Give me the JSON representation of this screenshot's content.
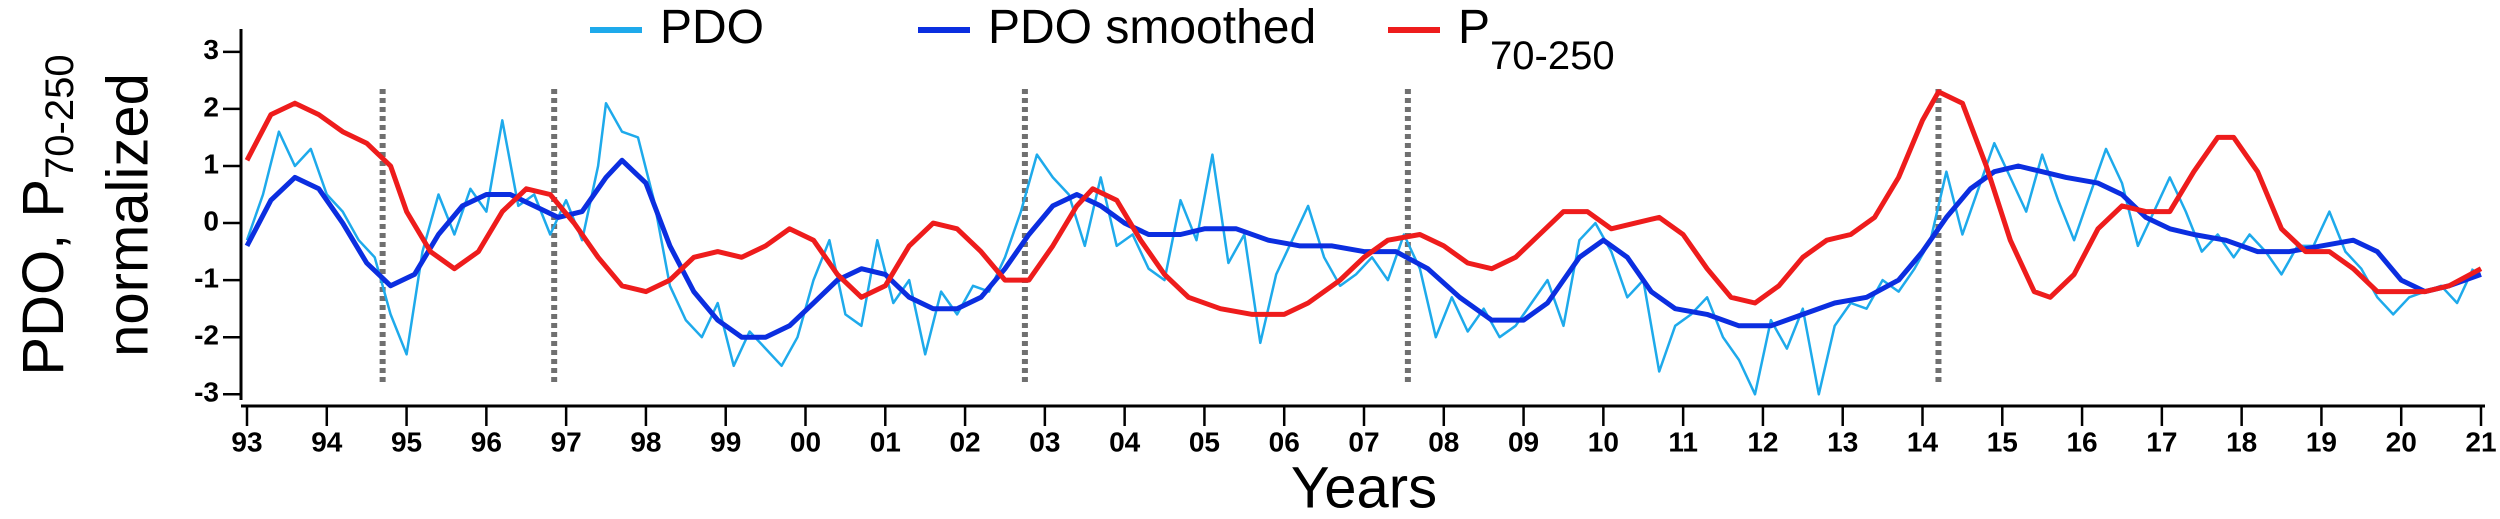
{
  "chart_data": {
    "type": "line",
    "x_label": "Years",
    "y_label": {
      "main": "PDO, P",
      "subscript": "70-250",
      "line2": "normalized"
    },
    "xlim": [
      1993,
      2021
    ],
    "ylim": [
      -3.1,
      3.4
    ],
    "xticks": [
      {
        "value": 1993,
        "label": "93"
      },
      {
        "value": 1994,
        "label": "94"
      },
      {
        "value": 1995,
        "label": "95"
      },
      {
        "value": 1996,
        "label": "96"
      },
      {
        "value": 1997,
        "label": "97"
      },
      {
        "value": 1998,
        "label": "98"
      },
      {
        "value": 1999,
        "label": "99"
      },
      {
        "value": 2000,
        "label": "00"
      },
      {
        "value": 2001,
        "label": "01"
      },
      {
        "value": 2002,
        "label": "02"
      },
      {
        "value": 2003,
        "label": "03"
      },
      {
        "value": 2004,
        "label": "04"
      },
      {
        "value": 2005,
        "label": "05"
      },
      {
        "value": 2006,
        "label": "06"
      },
      {
        "value": 2007,
        "label": "07"
      },
      {
        "value": 2008,
        "label": "08"
      },
      {
        "value": 2009,
        "label": "09"
      },
      {
        "value": 2010,
        "label": "10"
      },
      {
        "value": 2011,
        "label": "11"
      },
      {
        "value": 2012,
        "label": "12"
      },
      {
        "value": 2013,
        "label": "13"
      },
      {
        "value": 2014,
        "label": "14"
      },
      {
        "value": 2015,
        "label": "15"
      },
      {
        "value": 2016,
        "label": "16"
      },
      {
        "value": 2017,
        "label": "17"
      },
      {
        "value": 2018,
        "label": "18"
      },
      {
        "value": 2019,
        "label": "19"
      },
      {
        "value": 2020,
        "label": "20"
      },
      {
        "value": 2021,
        "label": "21"
      }
    ],
    "yticks": [
      -3,
      -2,
      -1,
      0,
      1,
      2,
      3
    ],
    "vlines": [
      1994.7,
      1996.85,
      2002.75,
      2007.55,
      2014.2
    ],
    "vline_color": "#707070",
    "series": [
      {
        "name": "PDO",
        "color": "#1eaaeb",
        "width": 2.5,
        "x": [
          1993.0,
          1993.2,
          1993.4,
          1993.6,
          1993.8,
          1994.0,
          1994.2,
          1994.4,
          1994.6,
          1994.8,
          1995.0,
          1995.2,
          1995.4,
          1995.6,
          1995.8,
          1996.0,
          1996.2,
          1996.4,
          1996.6,
          1996.8,
          1997.0,
          1997.2,
          1997.4,
          1997.5,
          1997.7,
          1997.9,
          1998.1,
          1998.3,
          1998.5,
          1998.7,
          1998.9,
          1999.1,
          1999.3,
          1999.5,
          1999.7,
          1999.9,
          2000.1,
          2000.3,
          2000.5,
          2000.7,
          2000.9,
          2001.1,
          2001.3,
          2001.5,
          2001.7,
          2001.9,
          2002.1,
          2002.3,
          2002.5,
          2002.7,
          2002.9,
          2003.1,
          2003.3,
          2003.5,
          2003.7,
          2003.9,
          2004.1,
          2004.3,
          2004.5,
          2004.7,
          2004.9,
          2005.1,
          2005.3,
          2005.5,
          2005.7,
          2005.9,
          2006.1,
          2006.3,
          2006.5,
          2006.7,
          2006.9,
          2007.1,
          2007.3,
          2007.5,
          2007.7,
          2007.9,
          2008.1,
          2008.3,
          2008.5,
          2008.7,
          2008.9,
          2009.1,
          2009.3,
          2009.5,
          2009.7,
          2009.9,
          2010.1,
          2010.3,
          2010.5,
          2010.7,
          2010.9,
          2011.1,
          2011.3,
          2011.5,
          2011.7,
          2011.9,
          2012.1,
          2012.3,
          2012.5,
          2012.7,
          2012.9,
          2013.1,
          2013.3,
          2013.5,
          2013.7,
          2013.9,
          2014.1,
          2014.3,
          2014.5,
          2014.7,
          2014.9,
          2015.1,
          2015.3,
          2015.5,
          2015.7,
          2015.9,
          2016.1,
          2016.3,
          2016.5,
          2016.7,
          2016.9,
          2017.1,
          2017.3,
          2017.5,
          2017.7,
          2017.9,
          2018.1,
          2018.3,
          2018.5,
          2018.7,
          2018.9,
          2019.1,
          2019.3,
          2019.5,
          2019.7,
          2019.9,
          2020.1,
          2020.3,
          2020.5,
          2020.7,
          2020.9
        ],
        "values": [
          -0.3,
          0.5,
          1.6,
          1.0,
          1.3,
          0.5,
          0.2,
          -0.3,
          -0.6,
          -1.6,
          -2.3,
          -0.5,
          0.5,
          -0.2,
          0.6,
          0.2,
          1.8,
          0.3,
          0.5,
          -0.2,
          0.4,
          -0.3,
          1.0,
          2.1,
          1.6,
          1.5,
          0.4,
          -1.1,
          -1.7,
          -2.0,
          -1.4,
          -2.5,
          -1.9,
          -2.2,
          -2.5,
          -2.0,
          -1.0,
          -0.3,
          -1.6,
          -1.8,
          -0.3,
          -1.4,
          -1.0,
          -2.3,
          -1.2,
          -1.6,
          -1.1,
          -1.2,
          -0.6,
          0.2,
          1.2,
          0.8,
          0.5,
          -0.4,
          0.8,
          -0.4,
          -0.2,
          -0.8,
          -1.0,
          0.4,
          -0.3,
          1.2,
          -0.7,
          -0.2,
          -2.1,
          -0.9,
          -0.3,
          0.3,
          -0.6,
          -1.1,
          -0.9,
          -0.6,
          -1.0,
          -0.2,
          -0.8,
          -2.0,
          -1.3,
          -1.9,
          -1.5,
          -2.0,
          -1.8,
          -1.4,
          -1.0,
          -1.8,
          -0.3,
          0.0,
          -0.5,
          -1.3,
          -1.0,
          -2.6,
          -1.8,
          -1.6,
          -1.3,
          -2.0,
          -2.4,
          -3.0,
          -1.7,
          -2.2,
          -1.5,
          -3.0,
          -1.8,
          -1.4,
          -1.5,
          -1.0,
          -1.2,
          -0.8,
          -0.3,
          0.9,
          -0.2,
          0.6,
          1.4,
          0.8,
          0.2,
          1.2,
          0.4,
          -0.3,
          0.5,
          1.3,
          0.7,
          -0.4,
          0.2,
          0.8,
          0.2,
          -0.5,
          -0.2,
          -0.6,
          -0.2,
          -0.5,
          -0.9,
          -0.4,
          -0.4,
          0.2,
          -0.5,
          -0.8,
          -1.3,
          -1.6,
          -1.3,
          -1.2,
          -1.1,
          -1.4,
          -0.8
        ]
      },
      {
        "name": "PDO smoothed",
        "color": "#0b2ee0",
        "width": 5,
        "x": [
          1993.0,
          1993.3,
          1993.6,
          1993.9,
          1994.2,
          1994.5,
          1994.8,
          1995.1,
          1995.4,
          1995.7,
          1996.0,
          1996.3,
          1996.6,
          1996.9,
          1997.2,
          1997.5,
          1997.7,
          1998.0,
          1998.3,
          1998.6,
          1998.9,
          1999.2,
          1999.5,
          1999.8,
          2000.1,
          2000.4,
          2000.7,
          2001.0,
          2001.3,
          2001.6,
          2001.9,
          2002.2,
          2002.5,
          2002.8,
          2003.1,
          2003.4,
          2003.7,
          2004.0,
          2004.3,
          2004.7,
          2005.0,
          2005.4,
          2005.8,
          2006.2,
          2006.6,
          2007.0,
          2007.4,
          2007.8,
          2008.2,
          2008.6,
          2009.0,
          2009.3,
          2009.7,
          2010.0,
          2010.3,
          2010.6,
          2010.9,
          2011.3,
          2011.7,
          2012.1,
          2012.5,
          2012.9,
          2013.3,
          2013.7,
          2014.0,
          2014.3,
          2014.6,
          2014.9,
          2015.2,
          2015.5,
          2015.8,
          2016.2,
          2016.5,
          2016.8,
          2017.1,
          2017.4,
          2017.8,
          2018.2,
          2018.6,
          2019.0,
          2019.4,
          2019.7,
          2020.0,
          2020.3,
          2020.6,
          2021.0
        ],
        "values": [
          -0.4,
          0.4,
          0.8,
          0.6,
          0.0,
          -0.7,
          -1.1,
          -0.9,
          -0.2,
          0.3,
          0.5,
          0.5,
          0.3,
          0.1,
          0.2,
          0.8,
          1.1,
          0.7,
          -0.4,
          -1.2,
          -1.7,
          -2.0,
          -2.0,
          -1.8,
          -1.4,
          -1.0,
          -0.8,
          -0.9,
          -1.3,
          -1.5,
          -1.5,
          -1.3,
          -0.8,
          -0.2,
          0.3,
          0.5,
          0.3,
          0.0,
          -0.2,
          -0.2,
          -0.1,
          -0.1,
          -0.3,
          -0.4,
          -0.4,
          -0.5,
          -0.5,
          -0.8,
          -1.3,
          -1.7,
          -1.7,
          -1.4,
          -0.6,
          -0.3,
          -0.6,
          -1.2,
          -1.5,
          -1.6,
          -1.8,
          -1.8,
          -1.6,
          -1.4,
          -1.3,
          -1.0,
          -0.5,
          0.1,
          0.6,
          0.9,
          1.0,
          0.9,
          0.8,
          0.7,
          0.5,
          0.1,
          -0.1,
          -0.2,
          -0.3,
          -0.5,
          -0.5,
          -0.4,
          -0.3,
          -0.5,
          -1.0,
          -1.2,
          -1.1,
          -0.9
        ]
      },
      {
        "name": "P",
        "name_subscript": "70-250",
        "color": "#ee1c1c",
        "width": 5,
        "x": [
          1993.0,
          1993.3,
          1993.6,
          1993.9,
          1994.2,
          1994.5,
          1994.8,
          1995.0,
          1995.3,
          1995.6,
          1995.9,
          1996.2,
          1996.5,
          1996.8,
          1997.1,
          1997.4,
          1997.7,
          1998.0,
          1998.3,
          1998.6,
          1998.9,
          1999.2,
          1999.5,
          1999.8,
          2000.1,
          2000.4,
          2000.7,
          2001.0,
          2001.3,
          2001.6,
          2001.9,
          2002.2,
          2002.5,
          2002.8,
          2003.1,
          2003.4,
          2003.6,
          2003.9,
          2004.2,
          2004.5,
          2004.8,
          2005.2,
          2005.6,
          2006.0,
          2006.3,
          2006.7,
          2007.0,
          2007.3,
          2007.7,
          2008.0,
          2008.3,
          2008.6,
          2008.9,
          2009.2,
          2009.5,
          2009.8,
          2010.1,
          2010.4,
          2010.7,
          2011.0,
          2011.3,
          2011.6,
          2011.9,
          2012.2,
          2012.5,
          2012.8,
          2013.1,
          2013.4,
          2013.7,
          2014.0,
          2014.2,
          2014.5,
          2014.8,
          2015.1,
          2015.4,
          2015.6,
          2015.9,
          2016.2,
          2016.5,
          2016.8,
          2017.1,
          2017.4,
          2017.7,
          2017.9,
          2018.2,
          2018.5,
          2018.8,
          2019.1,
          2019.4,
          2019.7,
          2020.0,
          2020.3,
          2020.6,
          2021.0
        ],
        "values": [
          1.1,
          1.9,
          2.1,
          1.9,
          1.6,
          1.4,
          1.0,
          0.2,
          -0.5,
          -0.8,
          -0.5,
          0.2,
          0.6,
          0.5,
          0.0,
          -0.6,
          -1.1,
          -1.2,
          -1.0,
          -0.6,
          -0.5,
          -0.6,
          -0.4,
          -0.1,
          -0.3,
          -0.9,
          -1.3,
          -1.1,
          -0.4,
          0.0,
          -0.1,
          -0.5,
          -1.0,
          -1.0,
          -0.4,
          0.3,
          0.6,
          0.4,
          -0.3,
          -0.9,
          -1.3,
          -1.5,
          -1.6,
          -1.6,
          -1.4,
          -1.0,
          -0.6,
          -0.3,
          -0.2,
          -0.4,
          -0.7,
          -0.8,
          -0.6,
          -0.2,
          0.2,
          0.2,
          -0.1,
          0.0,
          0.1,
          -0.2,
          -0.8,
          -1.3,
          -1.4,
          -1.1,
          -0.6,
          -0.3,
          -0.2,
          0.1,
          0.8,
          1.8,
          2.3,
          2.1,
          1.0,
          -0.3,
          -1.2,
          -1.3,
          -0.9,
          -0.1,
          0.3,
          0.2,
          0.2,
          0.9,
          1.5,
          1.5,
          0.9,
          -0.1,
          -0.5,
          -0.5,
          -0.8,
          -1.2,
          -1.2,
          -1.2,
          -1.1,
          -0.8
        ]
      }
    ]
  }
}
